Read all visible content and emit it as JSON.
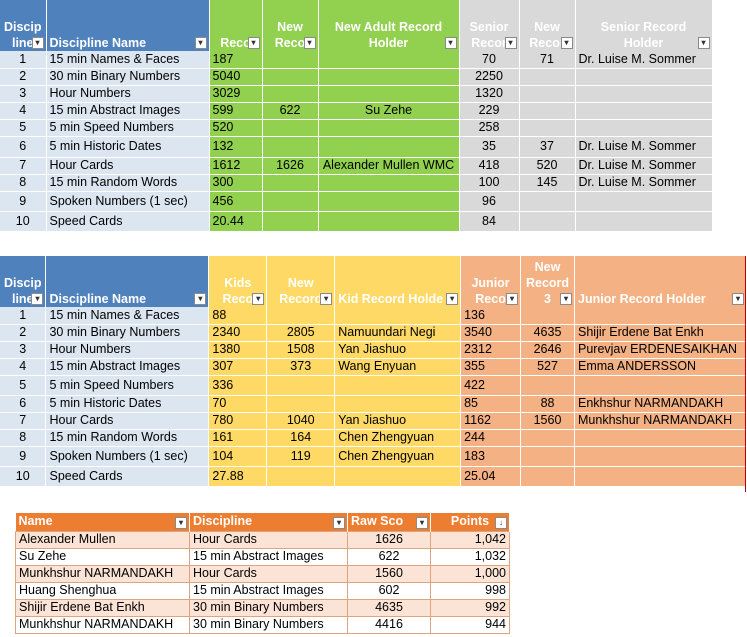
{
  "table1": {
    "headers": {
      "disc_l1": "Discip",
      "disc_l2": "line",
      "name": "Discipline Name",
      "reco": "Reco",
      "new_l1": "New",
      "new_l2": "Reco",
      "adult_l1": "New Adult Record",
      "adult_l2": "Holder",
      "senior_l1": "Senior",
      "senior_l2": "Recor",
      "snew_l1": "New",
      "snew_l2": "Recor",
      "sholder_l1": "Senior Record",
      "sholder_l2": "Holder"
    },
    "rows": [
      {
        "n": "1",
        "name": "15 min Names & Faces",
        "rec": "187",
        "new": "",
        "holder": "",
        "senior": "70",
        "snew": "71",
        "sholder": "Dr. Luise M. Sommer"
      },
      {
        "n": "2",
        "name": "30 min Binary Numbers",
        "rec": "5040",
        "new": "",
        "holder": "",
        "senior": "2250",
        "snew": "",
        "sholder": ""
      },
      {
        "n": "3",
        "name": "Hour Numbers",
        "rec": "3029",
        "new": "",
        "holder": "",
        "senior": "1320",
        "snew": "",
        "sholder": ""
      },
      {
        "n": "4",
        "name": "15 min Abstract Images",
        "rec": "599",
        "new": "622",
        "holder": "Su Zehe",
        "senior": "229",
        "snew": "",
        "sholder": ""
      },
      {
        "n": "5",
        "name": "5 min Speed Numbers",
        "rec": "520",
        "new": "",
        "holder": "",
        "senior": "258",
        "snew": "",
        "sholder": ""
      },
      {
        "n": "6",
        "name": "5 min Historic Dates",
        "rec": "132",
        "new": "",
        "holder": "",
        "senior": "35",
        "snew": "37",
        "sholder": "Dr. Luise M. Sommer"
      },
      {
        "n": "7",
        "name": "Hour Cards",
        "rec": "1612",
        "new": "1626",
        "holder": "Alexander Mullen WMC",
        "senior": "418",
        "snew": "520",
        "sholder": "Dr. Luise M. Sommer"
      },
      {
        "n": "8",
        "name": "15 min Random Words",
        "rec": "300",
        "new": "",
        "holder": "",
        "senior": "100",
        "snew": "145",
        "sholder": "Dr. Luise M. Sommer"
      },
      {
        "n": "9",
        "name": "Spoken Numbers (1 sec)",
        "rec": "456",
        "new": "",
        "holder": "",
        "senior": "96",
        "snew": "",
        "sholder": ""
      },
      {
        "n": "10",
        "name": "Speed Cards",
        "rec": "20.44",
        "new": "",
        "holder": "",
        "senior": "84",
        "snew": "",
        "sholder": ""
      }
    ]
  },
  "table2": {
    "headers": {
      "disc_l1": "Discip",
      "disc_l2": "line",
      "name": "Discipline Name",
      "kids_l1": "Kids",
      "kids_l2": "Reco",
      "new_l1": "New",
      "new_l2": "Record",
      "kholder": "Kid Record Holde",
      "junior_l1": "Junior",
      "junior_l2": "Reco",
      "jnew_l1": "New",
      "jnew_l2": "Record",
      "jnew_l3": "3",
      "jholder": "Junior Record Holder"
    },
    "rows": [
      {
        "n": "1",
        "name": "15 min Names & Faces",
        "kids": "88",
        "new": "",
        "holder": "",
        "junior": "136",
        "jnew": "",
        "jholder": ""
      },
      {
        "n": "2",
        "name": "30 min Binary Numbers",
        "kids": "2340",
        "new": "2805",
        "holder": "Namuundari Negi",
        "junior": "3540",
        "jnew": "4635",
        "jholder": "Shijir Erdene Bat Enkh"
      },
      {
        "n": "3",
        "name": "Hour Numbers",
        "kids": "1380",
        "new": "1508",
        "holder": "Yan Jiashuo",
        "junior": "2312",
        "jnew": "2646",
        "jholder": "Purevjav ERDENESAIKHAN"
      },
      {
        "n": "4",
        "name": "15 min Abstract Images",
        "kids": "307",
        "new": "373",
        "holder": "Wang Enyuan",
        "junior": "355",
        "jnew": "527",
        "jholder": "Emma ANDERSSON"
      },
      {
        "n": "5",
        "name": "5 min Speed Numbers",
        "kids": "336",
        "new": "",
        "holder": "",
        "junior": "422",
        "jnew": "",
        "jholder": ""
      },
      {
        "n": "6",
        "name": "5 min Historic Dates",
        "kids": "70",
        "new": "",
        "holder": "",
        "junior": "85",
        "jnew": "88",
        "jholder": "Enkhshur NARMANDAKH"
      },
      {
        "n": "7",
        "name": "Hour Cards",
        "kids": "780",
        "new": "1040",
        "holder": "Yan Jiashuo",
        "junior": "1162",
        "jnew": "1560",
        "jholder": "Munkhshur NARMANDAKH"
      },
      {
        "n": "8",
        "name": "15 min Random Words",
        "kids": "161",
        "new": "164",
        "holder": "Chen Zhengyuan",
        "junior": "244",
        "jnew": "",
        "jholder": ""
      },
      {
        "n": "9",
        "name": "Spoken Numbers (1 sec)",
        "kids": "104",
        "new": "119",
        "holder": "Chen Zhengyuan",
        "junior": "183",
        "jnew": "",
        "jholder": ""
      },
      {
        "n": "10",
        "name": "Speed Cards",
        "kids": "27.88",
        "new": "",
        "holder": "",
        "junior": "25.04",
        "jnew": "",
        "jholder": ""
      }
    ]
  },
  "table3": {
    "headers": {
      "name": "Name",
      "discipline": "Discipline",
      "raw": "Raw Sco",
      "points": "Points"
    },
    "rows": [
      {
        "name": "Alexander Mullen",
        "discipline": "Hour Cards",
        "raw": "1626",
        "points": "1,042"
      },
      {
        "name": "Su Zehe",
        "discipline": "15 min Abstract Images",
        "raw": "622",
        "points": "1,032"
      },
      {
        "name": "Munkhshur NARMANDAKH",
        "discipline": "Hour Cards",
        "raw": "1560",
        "points": "1,000"
      },
      {
        "name": "Huang Shenghua",
        "discipline": "15 min Abstract Images",
        "raw": "602",
        "points": "998"
      },
      {
        "name": "Shijir Erdene Bat Enkh",
        "discipline": "30 min Binary Numbers",
        "raw": "4635",
        "points": "992"
      },
      {
        "name": "Munkhshur NARMANDAKH",
        "discipline": "30 min Binary Numbers",
        "raw": "4416",
        "points": "944"
      }
    ]
  },
  "icons": {
    "filter": "filter-dropdown-icon",
    "sort": "sort-desc-icon"
  },
  "colors": {
    "blue": "#4f81bd",
    "green": "#92d050",
    "gray": "#d9d9d9",
    "yellow": "#ffd966",
    "orange": "#f4b183",
    "accent": "#ed7d31"
  }
}
